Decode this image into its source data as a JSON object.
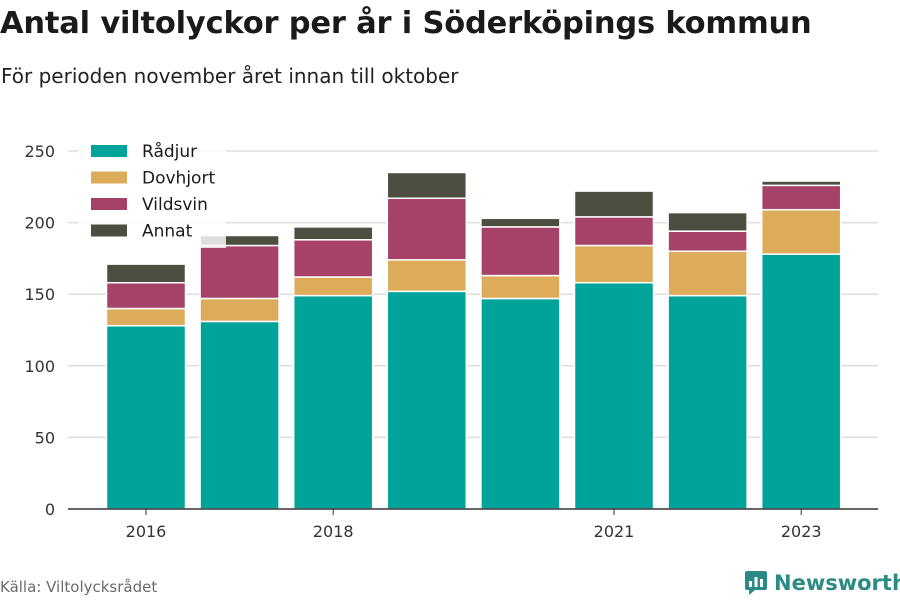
{
  "chart_data": {
    "type": "bar",
    "stacked": true,
    "title": "Antal viltolyckor per år i Söderköpings kommun",
    "subtitle": "För perioden november året innan till oktober",
    "categories": [
      "2016",
      "2017",
      "2018",
      "2019",
      "2020",
      "2021",
      "2022",
      "2023"
    ],
    "x_tick_labels": [
      "2016",
      "",
      "2018",
      "",
      "",
      "2021",
      "",
      "2023"
    ],
    "series": [
      {
        "name": "Rådjur",
        "color": "#00a39a",
        "values": [
          128,
          131,
          149,
          152,
          147,
          158,
          149,
          178
        ]
      },
      {
        "name": "Dovhjort",
        "color": "#dcac5a",
        "values": [
          12,
          16,
          13,
          22,
          16,
          26,
          31,
          31
        ]
      },
      {
        "name": "Vildsvin",
        "color": "#a64167",
        "values": [
          18,
          37,
          26,
          43,
          34,
          20,
          14,
          17
        ]
      },
      {
        "name": "Annat",
        "color": "#4b4e40",
        "values": [
          13,
          7,
          9,
          18,
          6,
          18,
          13,
          3
        ]
      }
    ],
    "ylim": [
      0,
      250
    ],
    "yticks": [
      0,
      50,
      100,
      150,
      200,
      250
    ],
    "grid": true,
    "legend_position": "top-left"
  },
  "footer": {
    "source": "Källa: Viltolycksrådet",
    "brand": "Newsworthy"
  }
}
